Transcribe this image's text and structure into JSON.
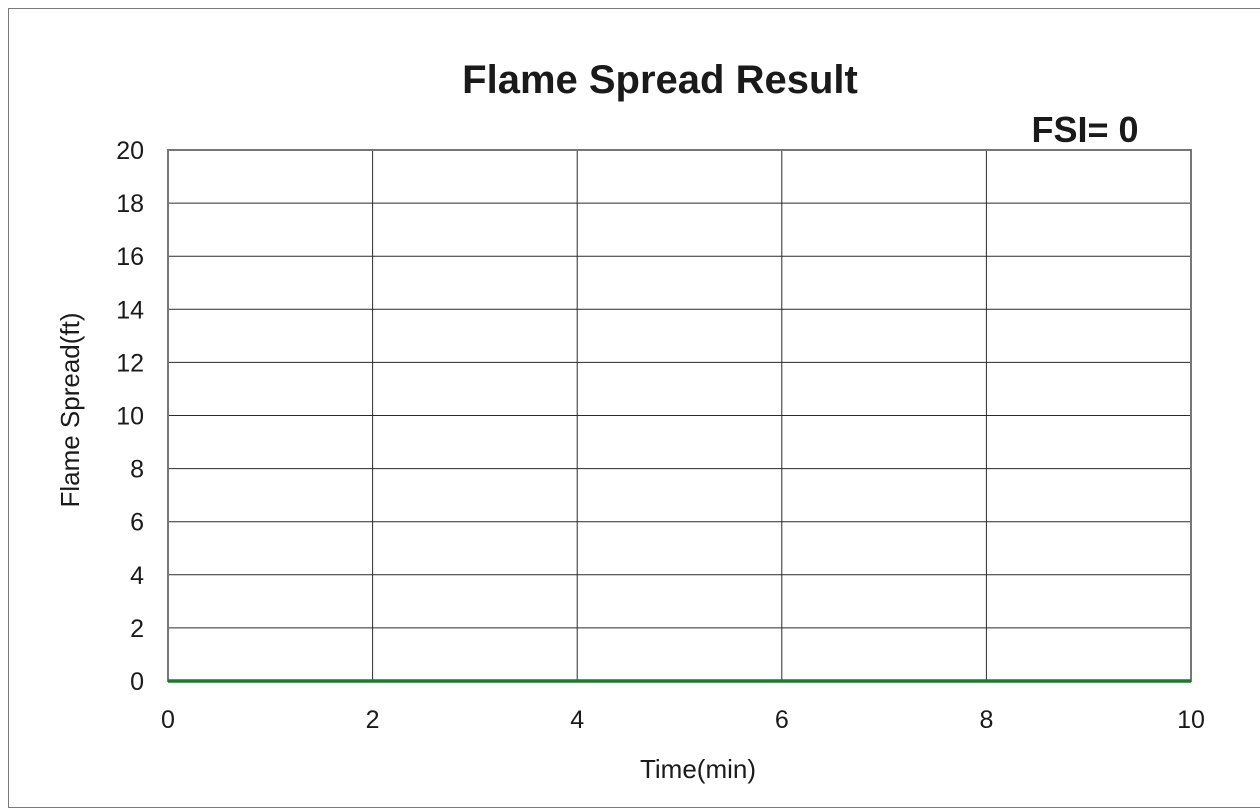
{
  "chart_data": {
    "type": "line",
    "title": "Flame Spread Result",
    "annotation": "FSI= 0",
    "xlabel": "Time(min)",
    "ylabel": "Flame Spread(ft)",
    "xlim": [
      0,
      10
    ],
    "ylim": [
      0,
      20
    ],
    "x_ticks": [
      "0",
      "2",
      "4",
      "6",
      "8",
      "10"
    ],
    "y_ticks": [
      "0",
      "2",
      "4",
      "6",
      "8",
      "10",
      "12",
      "14",
      "16",
      "18",
      "20"
    ],
    "grid": true,
    "series": [
      {
        "x": [
          0,
          10
        ],
        "values": [
          0,
          0
        ],
        "color": "#1a7a2e"
      }
    ]
  }
}
